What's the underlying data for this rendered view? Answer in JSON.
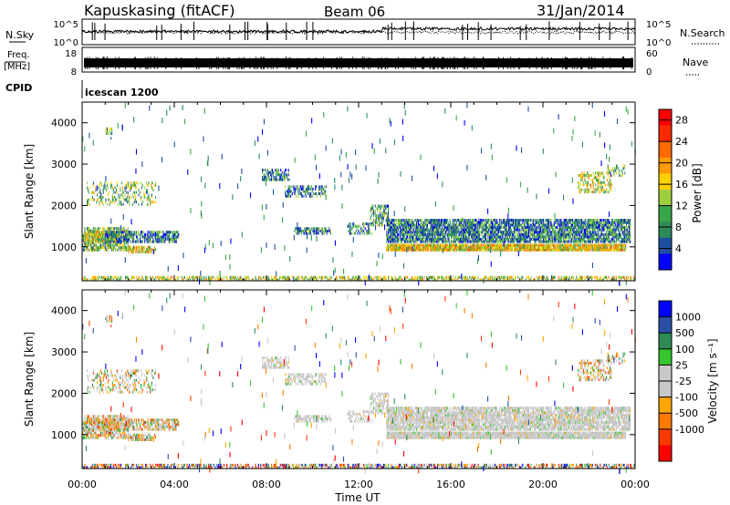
{
  "header": {
    "station": "Kapuskasing (fitACF)",
    "beam": "Beam 06",
    "date": "31/Jan/2014"
  },
  "panels": {
    "nsky_label": "N.Sky",
    "nsearch_label": "N.Search",
    "noise_ticks": [
      "10^5",
      "10^0"
    ],
    "freq_label_1": "Freq.",
    "freq_label_2": "[MHz]",
    "freq_ticks": [
      "18",
      "8"
    ],
    "nave_label": "Nave",
    "nave_ticks": [
      "60",
      "0"
    ],
    "cpid_label": "CPID",
    "cpid_value": "icescan 1200"
  },
  "colors": {
    "power": [
      "#0000ff",
      "#1f4fa0",
      "#2e8b57",
      "#3aa64a",
      "#9fcf3f",
      "#ffd000",
      "#ff9a00",
      "#ff6a00",
      "#ff2a00",
      "#ff0000"
    ],
    "velocity": [
      "#0000ff",
      "#2a4fa5",
      "#2e8b57",
      "#35c62e",
      "#c8c8c8",
      "#c8c8c8",
      "#ffa500",
      "#ff7a00",
      "#ff3a00",
      "#ff0000"
    ],
    "ground_gray": "#c8c8c8"
  },
  "chart_data": [
    {
      "type": "heatmap",
      "name": "power",
      "xlabel": "",
      "ylabel": "Slant Range [km]",
      "xlim": [
        "00:00",
        "00:00"
      ],
      "ylim": [
        180,
        4500
      ],
      "yticks": [
        1000,
        2000,
        3000,
        4000
      ],
      "colorbar_label": "Power [dB]",
      "colorbar_ticks": [
        4,
        8,
        12,
        16,
        20,
        24,
        28
      ],
      "colorbar_range": [
        0,
        30
      ]
    },
    {
      "type": "heatmap",
      "name": "velocity",
      "xlabel": "Time UT",
      "ylabel": "Slant Range [km]",
      "xticks": [
        "00:00",
        "04:00",
        "08:00",
        "12:00",
        "16:00",
        "20:00",
        "00:00"
      ],
      "xlim_hours": [
        0,
        24
      ],
      "ylim": [
        180,
        4500
      ],
      "yticks": [
        1000,
        2000,
        3000,
        4000
      ],
      "colorbar_label": "Velocity [m s⁻¹]",
      "colorbar_ticks": [
        "1000",
        "500",
        "100",
        "25",
        "-25",
        "-100",
        "-500",
        "-1000"
      ]
    }
  ]
}
